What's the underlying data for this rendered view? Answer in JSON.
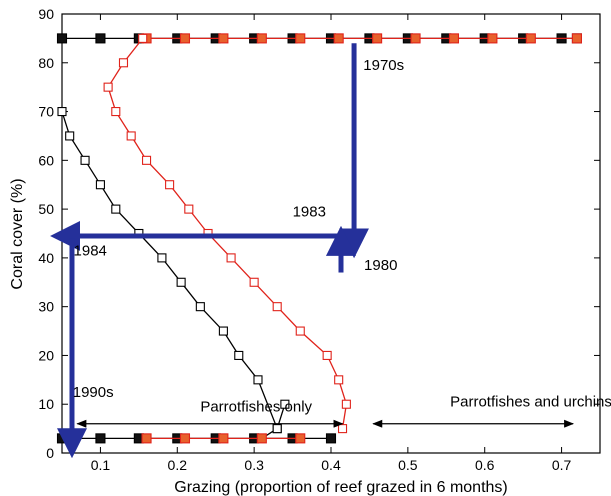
{
  "chart_data": {
    "type": "line",
    "title": "",
    "xlabel": "Grazing (proportion of reef grazed in 6 months)",
    "ylabel": "Coral cover (%)",
    "xlim": [
      0.05,
      0.75
    ],
    "ylim": [
      0,
      90
    ],
    "xticks": [
      0.1,
      0.2,
      0.3,
      0.4,
      0.5,
      0.6,
      0.7
    ],
    "xtick_labels": [
      "0.1",
      "0.2",
      "0.3",
      "0.4",
      "0.5",
      "0.6",
      "0.7"
    ],
    "yticks": [
      0,
      10,
      20,
      30,
      40,
      50,
      60,
      70,
      80,
      90
    ],
    "ytick_labels": [
      "0",
      "10",
      "20",
      "30",
      "40",
      "50",
      "60",
      "70",
      "80",
      "90"
    ],
    "grid": false,
    "colors": {
      "black": "#000000",
      "red": "#e0231b",
      "blue": "#25309a",
      "orange": "#e8612c"
    },
    "series": [
      {
        "color": "#000000",
        "marker": "square-filled",
        "x": [
          0.05,
          0.1,
          0.15,
          0.2,
          0.25,
          0.3,
          0.35,
          0.4,
          0.45,
          0.5,
          0.55,
          0.6,
          0.65,
          0.7,
          0.72
        ],
        "y": [
          85,
          85,
          85,
          85,
          85,
          85,
          85,
          85,
          85,
          85,
          85,
          85,
          85,
          85,
          85
        ]
      },
      {
        "color": "#000000",
        "marker": "square-filled",
        "x": [
          0.05,
          0.1,
          0.15,
          0.2,
          0.25,
          0.3,
          0.35,
          0.4
        ],
        "y": [
          3,
          3,
          3,
          3,
          3,
          3,
          3,
          3
        ]
      },
      {
        "color": "#000000",
        "marker": "square-open",
        "x": [
          0.05,
          0.06,
          0.08,
          0.1,
          0.12,
          0.15,
          0.18,
          0.205,
          0.23,
          0.26,
          0.28,
          0.305,
          0.33,
          0.34,
          0.33,
          0.31
        ],
        "y": [
          70,
          65,
          60,
          55,
          50,
          45,
          40,
          35,
          30,
          25,
          20,
          15,
          5,
          10,
          5,
          3
        ]
      },
      {
        "color": "#e0231b",
        "marker": "square-filled",
        "x": [
          0.16,
          0.21,
          0.26,
          0.31,
          0.36,
          0.41,
          0.46,
          0.51,
          0.56,
          0.61,
          0.66,
          0.72
        ],
        "y": [
          85,
          85,
          85,
          85,
          85,
          85,
          85,
          85,
          85,
          85,
          85,
          85
        ]
      },
      {
        "color": "#e0231b",
        "marker": "square-filled",
        "x": [
          0.16,
          0.21,
          0.26,
          0.31,
          0.36
        ],
        "y": [
          3,
          3,
          3,
          3,
          3
        ]
      },
      {
        "color": "#e0231b",
        "marker": "square-open",
        "x": [
          0.155,
          0.13,
          0.11,
          0.12,
          0.14,
          0.16,
          0.19,
          0.215,
          0.24,
          0.27,
          0.3,
          0.33,
          0.36,
          0.395,
          0.41,
          0.42,
          0.415
        ],
        "y": [
          85,
          80,
          75,
          70,
          65,
          60,
          55,
          50,
          45,
          40,
          35,
          30,
          25,
          20,
          15,
          10,
          5
        ]
      }
    ],
    "annotations": [
      {
        "text": "1970s",
        "x": 0.442,
        "y": 78.5
      },
      {
        "text": "1983",
        "x": 0.35,
        "y": 48.5
      },
      {
        "text": "1980",
        "x": 0.443,
        "y": 37.5
      },
      {
        "text": "1984",
        "x": 0.065,
        "y": 40.5
      },
      {
        "text": "1990s",
        "x": 0.064,
        "y": 11.5
      },
      {
        "text": "Parrotfishes only",
        "x": 0.23,
        "y": 8.5
      },
      {
        "text": "Parrotfishes and urchins",
        "x": 0.555,
        "y": 9.5
      }
    ],
    "blue_arrows": [
      {
        "label": "1970s drop",
        "from": [
          0.43,
          84
        ],
        "to": [
          0.43,
          43
        ]
      },
      {
        "label": "1983 shift",
        "from": [
          0.413,
          44.5
        ],
        "to": [
          0.054,
          44.5
        ]
      },
      {
        "label": "1980 rise",
        "from": [
          0.413,
          37
        ],
        "to": [
          0.413,
          43.5
        ]
      },
      {
        "label": "1984 drop",
        "from": [
          0.063,
          44
        ],
        "to": [
          0.063,
          2
        ]
      }
    ],
    "double_arrows": [
      {
        "label": "parrotfishes-only range",
        "from": [
          0.07,
          6
        ],
        "to": [
          0.415,
          6
        ]
      },
      {
        "label": "parrotfishes-and-urchins range",
        "from": [
          0.455,
          6
        ],
        "to": [
          0.715,
          6
        ]
      }
    ]
  }
}
